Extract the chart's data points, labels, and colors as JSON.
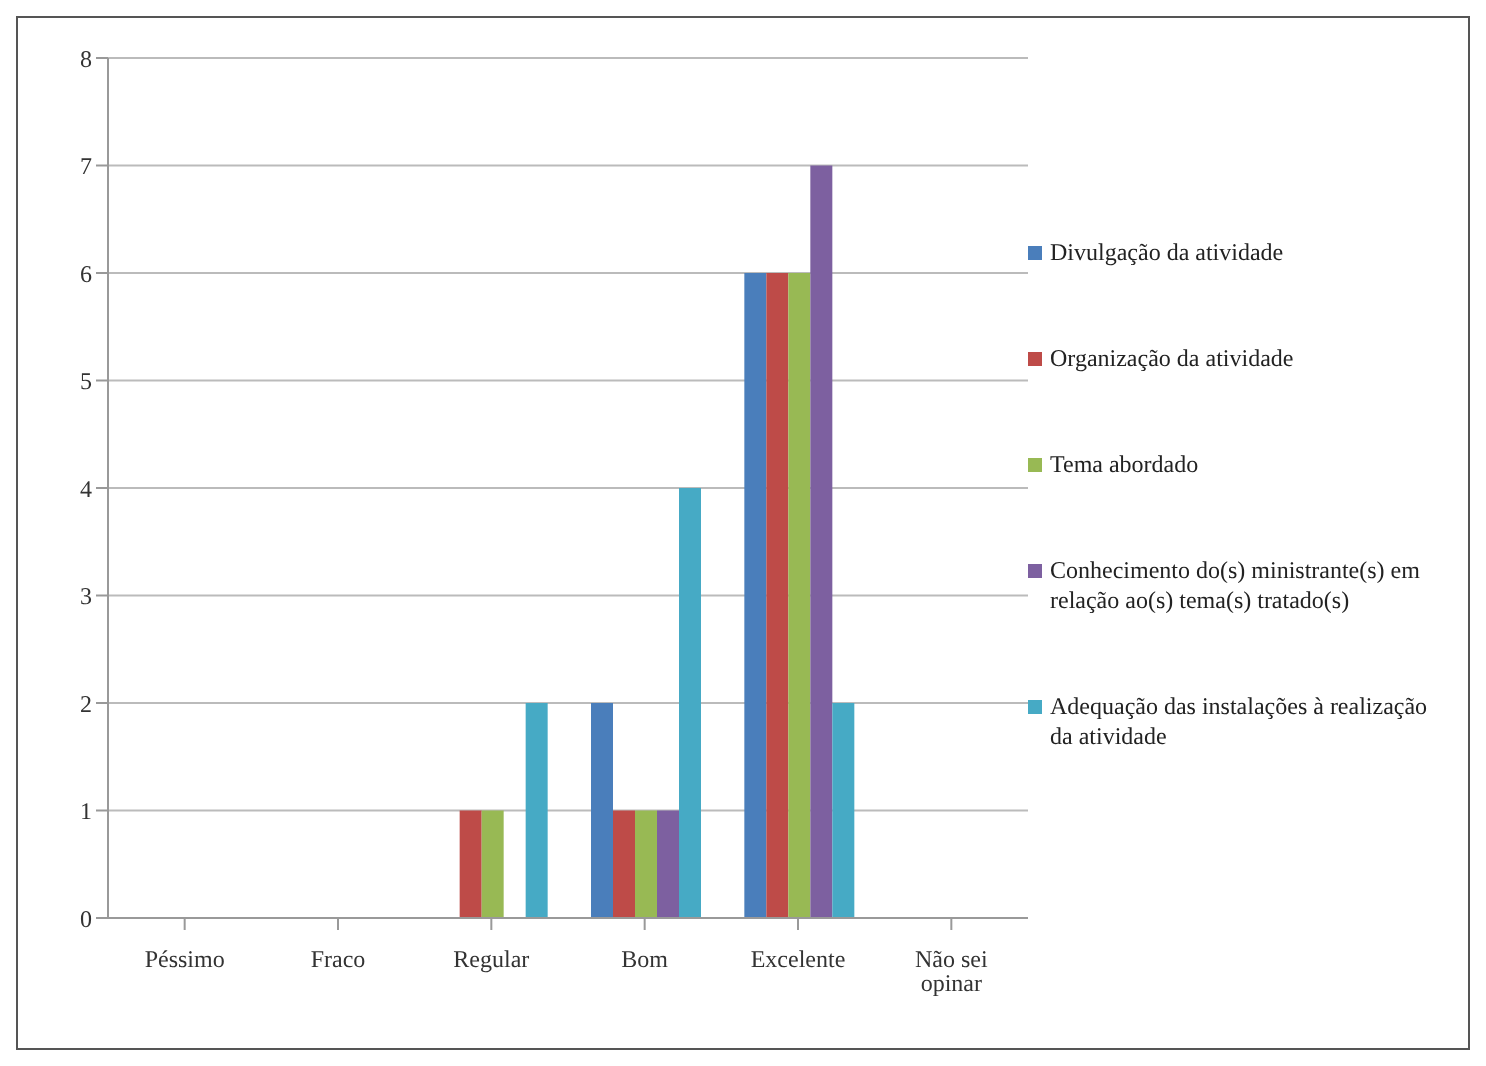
{
  "chart_data": {
    "type": "bar",
    "categories": [
      "Péssimo",
      "Fraco",
      "Regular",
      "Bom",
      "Excelente",
      "Não sei opinar"
    ],
    "series": [
      {
        "name": "Divulgação da atividade",
        "color": "#4a7ebb",
        "values": [
          0,
          0,
          0,
          2,
          6,
          0
        ]
      },
      {
        "name": "Organização da atividade",
        "color": "#be4b48",
        "values": [
          0,
          0,
          1,
          1,
          6,
          0
        ]
      },
      {
        "name": "Tema abordado",
        "color": "#98b954",
        "values": [
          0,
          0,
          1,
          1,
          6,
          0
        ]
      },
      {
        "name": "Conhecimento do(s) ministrante(s) em relação ao(s) tema(s) tratado(s)",
        "color": "#7d60a0",
        "values": [
          0,
          0,
          0,
          1,
          7,
          0
        ]
      },
      {
        "name": "Adequação das instalações à realização da atividade",
        "color": "#46aac5",
        "values": [
          0,
          0,
          2,
          4,
          2,
          0
        ]
      }
    ],
    "ylim": [
      0,
      8
    ],
    "yticks": [
      0,
      1,
      2,
      3,
      4,
      5,
      6,
      7,
      8
    ],
    "grid": "y",
    "legend": "right"
  }
}
